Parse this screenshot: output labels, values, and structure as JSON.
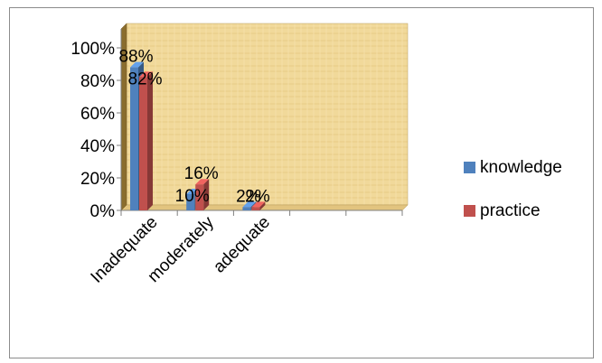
{
  "chart_data": {
    "type": "bar",
    "style": "3d-clustered-column",
    "categories": [
      "Inadequate",
      "moderately",
      "adequate",
      "",
      ""
    ],
    "series": [
      {
        "name": "knowledge",
        "values": [
          88,
          10,
          2,
          null,
          null
        ],
        "color": "#4f81bd",
        "data_labels": [
          "88%",
          "10%",
          "2%",
          "",
          ""
        ]
      },
      {
        "name": "practice",
        "values": [
          82,
          16,
          2,
          null,
          null
        ],
        "color": "#c0504d",
        "data_labels": [
          "82%",
          "16%",
          "2%",
          "",
          ""
        ]
      }
    ],
    "ylim": [
      0,
      100
    ],
    "y_ticks": [
      "0%",
      "20%",
      "40%",
      "60%",
      "80%",
      "100%"
    ],
    "y_tick_values": [
      0,
      20,
      40,
      60,
      80,
      100
    ],
    "title": "",
    "xlabel": "",
    "ylabel": "",
    "legend_position": "right",
    "plot_background": "papyrus-texture",
    "grid": false
  }
}
